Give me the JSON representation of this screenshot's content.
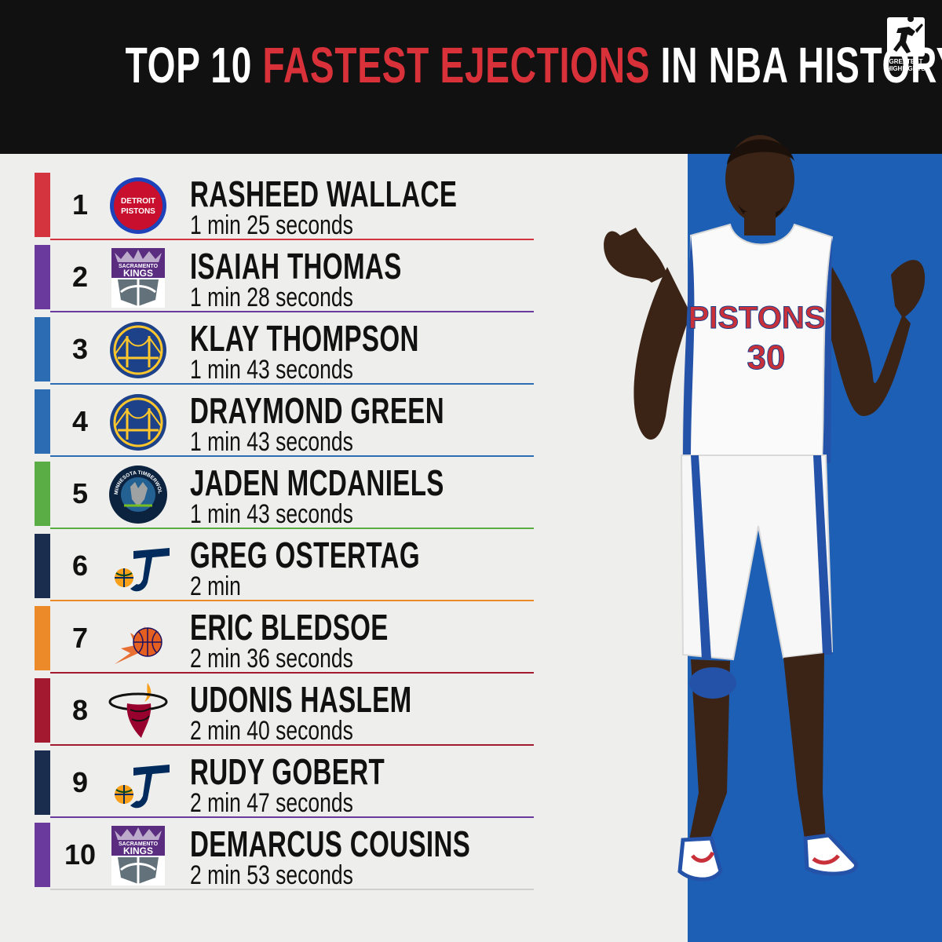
{
  "header": {
    "title_part1": "TOP 10 ",
    "title_highlight": "FASTEST EJECTIONS",
    "title_part2": " IN NBA HISTORY",
    "brand_line1": "GREATEST",
    "brand_line2": "HIGHLIGHTS"
  },
  "colors": {
    "header_bg": "#111111",
    "highlight": "#d9313a",
    "blue_panel": "#1d5fb4",
    "background": "#eeeeec"
  },
  "player_photo": {
    "jersey_team": "PISTONS",
    "jersey_number": "30"
  },
  "rankings": [
    {
      "rank": "1",
      "name": "RASHEED WALLACE",
      "time": "1 min 25 seconds",
      "team_logo": "detroit-pistons-logo",
      "logo_text": [
        "DETROIT",
        "PISTONS"
      ],
      "accent": "#d4343d"
    },
    {
      "rank": "2",
      "name": "ISAIAH THOMAS",
      "time": "1 min 28 seconds",
      "team_logo": "sacramento-kings-logo",
      "logo_text": [
        "SACRAMENTO",
        "KINGS"
      ],
      "accent": "#6a3a9c"
    },
    {
      "rank": "3",
      "name": "KLAY THOMPSON",
      "time": "1 min 43 seconds",
      "team_logo": "golden-state-warriors-logo",
      "logo_text": [],
      "accent": "#2b6cb3"
    },
    {
      "rank": "4",
      "name": "DRAYMOND GREEN",
      "time": "1 min 43 seconds",
      "team_logo": "golden-state-warriors-logo",
      "logo_text": [],
      "accent": "#2b6cb3"
    },
    {
      "rank": "5",
      "name": "JADEN MCDANIELS",
      "time": "1 min 43 seconds",
      "team_logo": "minnesota-timberwolves-logo",
      "logo_text": [
        "MINNESOTA TIMBERWOLVES"
      ],
      "accent": "#5aac45"
    },
    {
      "rank": "6",
      "name": "GREG OSTERTAG",
      "time": "2 min",
      "team_logo": "utah-jazz-logo",
      "logo_text": [],
      "accent": "#1b2d4f"
    },
    {
      "rank": "7",
      "name": "ERIC BLEDSOE",
      "time": "2 min 36 seconds",
      "team_logo": "phoenix-suns-logo",
      "logo_text": [],
      "accent": "#ec8a2a"
    },
    {
      "rank": "8",
      "name": "UDONIS HASLEM",
      "time": "2 min 40 seconds",
      "team_logo": "miami-heat-logo",
      "logo_text": [],
      "accent": "#a3192f"
    },
    {
      "rank": "9",
      "name": "RUDY GOBERT",
      "time": "2 min 47 seconds",
      "team_logo": "utah-jazz-logo",
      "logo_text": [],
      "accent": "#1b2d4f"
    },
    {
      "rank": "10",
      "name": "DEMARCUS COUSINS",
      "time": "2 min 53 seconds",
      "team_logo": "sacramento-kings-logo",
      "logo_text": [
        "SACRAMENTO",
        "KINGS"
      ],
      "accent": "#6a3a9c"
    }
  ]
}
